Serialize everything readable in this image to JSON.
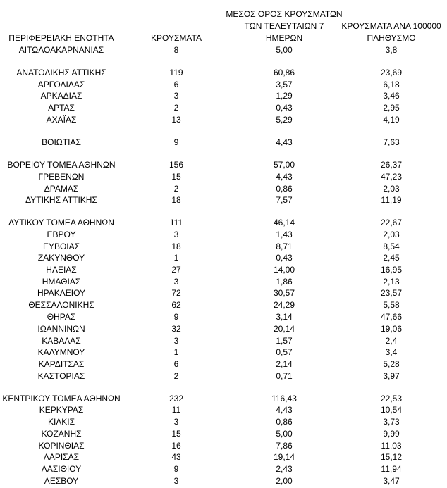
{
  "table": {
    "header": [
      [
        "ΠΕΡΙΦΕΡΕΙΑΚΗ ΕΝΟΤΗΤΑ"
      ],
      [
        "ΚΡΟΥΣΜΑΤΑ"
      ],
      [
        "ΜΕΣΟΣ ΟΡΟΣ ΚΡΟΥΣΜΑΤΩΝ",
        "ΤΩΝ ΤΕΛΕΥΤΑΙΩΝ 7",
        "ΗΜΕΡΩΝ"
      ],
      [
        "ΚΡΟΥΣΜΑΤΑ ΑΝΑ 100000",
        "ΠΛΗΘΥΣΜΟ"
      ]
    ],
    "rows": [
      [
        "ΑΙΤΩΛΟΑΚΑΡΝΑΝΙΑΣ",
        "8",
        "5,00",
        "3,8"
      ],
      [
        "ΑΝΑΤΟΛΙΚΗΣ ΑΤΤΙΚΗΣ",
        "119",
        "60,86",
        "23,69"
      ],
      [
        "ΑΡΓΟΛΙΔΑΣ",
        "6",
        "3,57",
        "6,18"
      ],
      [
        "ΑΡΚΑΔΙΑΣ",
        "3",
        "1,29",
        "3,46"
      ],
      [
        "ΑΡΤΑΣ",
        "2",
        "0,43",
        "2,95"
      ],
      [
        "ΑΧΑΪΑΣ",
        "13",
        "5,29",
        "4,19"
      ],
      [
        "ΒΟΙΩΤΙΑΣ",
        "9",
        "4,43",
        "7,63"
      ],
      [
        "ΒΟΡΕΙΟΥ ΤΟΜΕΑ ΑΘΗΝΩΝ",
        "156",
        "57,00",
        "26,37"
      ],
      [
        "ΓΡΕΒΕΝΩΝ",
        "15",
        "4,43",
        "47,23"
      ],
      [
        "ΔΡΑΜΑΣ",
        "2",
        "0,86",
        "2,03"
      ],
      [
        "ΔΥΤΙΚΗΣ ΑΤΤΙΚΗΣ",
        "18",
        "7,57",
        "11,19"
      ],
      [
        "ΔΥΤΙΚΟΥ ΤΟΜΕΑ ΑΘΗΝΩΝ",
        "111",
        "46,14",
        "22,67"
      ],
      [
        "ΕΒΡΟΥ",
        "3",
        "1,43",
        "2,03"
      ],
      [
        "ΕΥΒΟΙΑΣ",
        "18",
        "8,71",
        "8,54"
      ],
      [
        "ΖΑΚΥΝΘΟΥ",
        "1",
        "0,43",
        "2,45"
      ],
      [
        "ΗΛΕΙΑΣ",
        "27",
        "14,00",
        "16,95"
      ],
      [
        "ΗΜΑΘΙΑΣ",
        "3",
        "1,86",
        "2,13"
      ],
      [
        "ΗΡΑΚΛΕΙΟΥ",
        "72",
        "30,57",
        "23,57"
      ],
      [
        "ΘΕΣΣΑΛΟΝΙΚΗΣ",
        "62",
        "24,29",
        "5,58"
      ],
      [
        "ΘΗΡΑΣ",
        "9",
        "3,14",
        "47,66"
      ],
      [
        "ΙΩΑΝΝΙΝΩΝ",
        "32",
        "20,14",
        "19,06"
      ],
      [
        "ΚΑΒΑΛΑΣ",
        "3",
        "1,57",
        "2,4"
      ],
      [
        "ΚΑΛΥΜΝΟΥ",
        "1",
        "0,57",
        "3,4"
      ],
      [
        "ΚΑΡΔΙΤΣΑΣ",
        "6",
        "2,14",
        "5,28"
      ],
      [
        "ΚΑΣΤΟΡΙΑΣ",
        "2",
        "0,71",
        "3,97"
      ],
      [
        "ΚΕΝΤΡΙΚΟΥ ΤΟΜΕΑ ΑΘΗΝΩΝ",
        "232",
        "116,43",
        "22,53"
      ],
      [
        "ΚΕΡΚΥΡΑΣ",
        "11",
        "4,43",
        "10,54"
      ],
      [
        "ΚΙΛΚΙΣ",
        "3",
        "0,86",
        "3,73"
      ],
      [
        "ΚΟΖΑΝΗΣ",
        "15",
        "5,00",
        "9,99"
      ],
      [
        "ΚΟΡΙΝΘΙΑΣ",
        "16",
        "7,86",
        "11,03"
      ],
      [
        "ΛΑΡΙΣΑΣ",
        "43",
        "19,14",
        "15,12"
      ],
      [
        "ΛΑΣΙΘΙΟΥ",
        "9",
        "2,43",
        "11,94"
      ],
      [
        "ΛΕΣΒΟΥ",
        "3",
        "2,00",
        "3,47"
      ]
    ]
  }
}
